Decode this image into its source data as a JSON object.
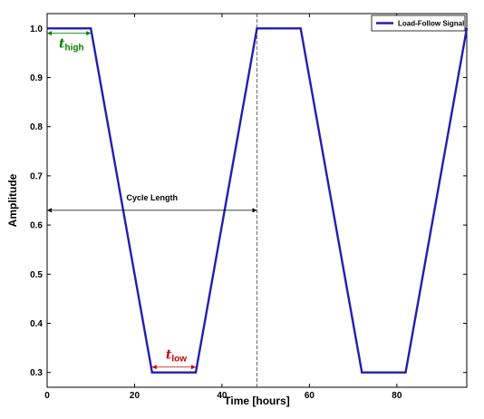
{
  "chart_data": {
    "type": "line",
    "xlabel": "Time [hours]",
    "ylabel": "Amplitude",
    "xlim": [
      0,
      96
    ],
    "ylim": [
      0.27,
      1.03
    ],
    "xticks": [
      0,
      20,
      40,
      60,
      80
    ],
    "yticks": [
      0.3,
      0.4,
      0.5,
      0.6,
      0.7,
      0.8,
      0.9,
      1.0
    ],
    "xtick_labels": [
      "0",
      "20",
      "40",
      "60",
      "80"
    ],
    "ytick_labels": [
      "0.3",
      "0.4",
      "0.5",
      "0.6",
      "0.7",
      "0.8",
      "0.9",
      "1.0"
    ],
    "grid": false,
    "legend_position": "top-right",
    "series": [
      {
        "name": "Load-Follow Signal",
        "color": "#1f1fb4",
        "x": [
          0,
          10,
          24,
          34,
          48,
          58,
          72,
          82,
          96
        ],
        "y": [
          1.0,
          1.0,
          0.3,
          0.3,
          1.0,
          1.0,
          0.3,
          0.3,
          1.0
        ]
      }
    ],
    "annotations": {
      "cycle_length": {
        "text": "Cycle Length",
        "x_start": 0,
        "x_end": 48,
        "y": 0.63,
        "marker_x": 48
      },
      "t_high": {
        "symbol": "t",
        "subscript": "high",
        "color": "#008000",
        "x_start": 0,
        "x_end": 10,
        "y": 0.99
      },
      "t_low": {
        "symbol": "t",
        "subscript": "low",
        "color": "#cc0000",
        "x_start": 24,
        "x_end": 34,
        "y": 0.3
      }
    }
  }
}
